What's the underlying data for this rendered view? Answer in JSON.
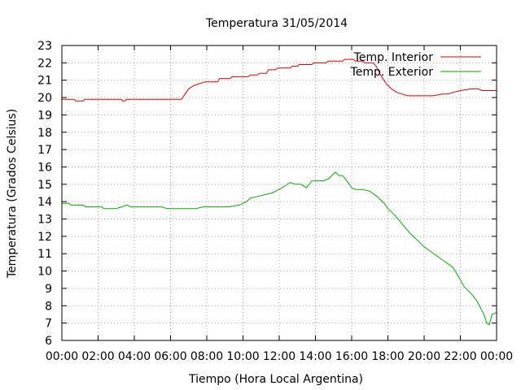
{
  "chart_data": {
    "type": "line",
    "title": "Temperatura 31/05/2014",
    "xlabel": "Tiempo (Hora Local Argentina)",
    "ylabel": "Temperatura (Grados Celsius)",
    "xlim": [
      0,
      24
    ],
    "ylim": [
      6,
      23
    ],
    "x_ticks": [
      "00:00",
      "02:00",
      "04:00",
      "06:00",
      "08:00",
      "10:00",
      "12:00",
      "14:00",
      "16:00",
      "18:00",
      "20:00",
      "22:00",
      "00:00"
    ],
    "y_ticks": [
      6,
      7,
      8,
      9,
      10,
      11,
      12,
      13,
      14,
      15,
      16,
      17,
      18,
      19,
      20,
      21,
      22,
      23
    ],
    "grid": true,
    "legend_position": "top-right",
    "series": [
      {
        "name": "Temp. Interior",
        "color": "#dd0000",
        "x": [
          0,
          0.7,
          0.75,
          1.2,
          1.25,
          3.3,
          3.35,
          3.5,
          3.55,
          6.6,
          6.8,
          7.0,
          7.3,
          7.6,
          7.9,
          8.6,
          8.7,
          9.3,
          9.4,
          10.3,
          10.4,
          10.8,
          10.9,
          11.3,
          11.4,
          11.8,
          11.9,
          12.6,
          12.7,
          13.0,
          13.1,
          13.8,
          13.9,
          14.6,
          14.7,
          15.5,
          15.6,
          16.1,
          16.2,
          16.6,
          16.7,
          17.2,
          17.35,
          17.6,
          17.9,
          18.2,
          18.5,
          18.8,
          19.1,
          19.5,
          20.0,
          20.5,
          21.0,
          21.3,
          21.6,
          22.0,
          22.6,
          23.0,
          23.2,
          23.5,
          24.0
        ],
        "y": [
          19.9,
          19.9,
          19.8,
          19.8,
          19.9,
          19.9,
          19.8,
          19.8,
          19.9,
          19.9,
          20.2,
          20.5,
          20.7,
          20.8,
          20.9,
          20.9,
          21.1,
          21.1,
          21.2,
          21.2,
          21.3,
          21.3,
          21.4,
          21.4,
          21.6,
          21.6,
          21.7,
          21.7,
          21.8,
          21.8,
          21.9,
          21.9,
          22.0,
          22.0,
          22.1,
          22.1,
          22.2,
          22.2,
          22.1,
          22.1,
          22.0,
          22.0,
          21.8,
          21.3,
          20.8,
          20.5,
          20.3,
          20.2,
          20.1,
          20.1,
          20.1,
          20.1,
          20.2,
          20.2,
          20.3,
          20.4,
          20.5,
          20.5,
          20.4,
          20.4,
          20.4
        ]
      },
      {
        "name": "Temp. Exterior",
        "color": "#00aa00",
        "x": [
          0,
          0.4,
          0.5,
          1.2,
          1.3,
          2.2,
          2.3,
          3.0,
          3.3,
          3.6,
          3.8,
          4.2,
          5.0,
          5.5,
          5.8,
          6.4,
          7.0,
          7.4,
          7.8,
          8.5,
          9.2,
          9.8,
          10.2,
          10.4,
          10.8,
          11.2,
          11.6,
          12.0,
          12.3,
          12.6,
          12.9,
          13.2,
          13.5,
          13.8,
          14.0,
          14.4,
          14.7,
          14.9,
          15.1,
          15.3,
          15.5,
          15.8,
          16.0,
          16.2,
          16.6,
          17.0,
          17.4,
          17.8,
          18.0,
          18.4,
          18.8,
          19.2,
          19.6,
          20.0,
          20.4,
          20.8,
          21.2,
          21.6,
          22.0,
          22.2,
          22.6,
          22.9,
          23.1,
          23.3,
          23.45,
          23.6,
          23.75,
          24.0
        ],
        "y": [
          13.9,
          13.9,
          13.8,
          13.8,
          13.7,
          13.7,
          13.6,
          13.6,
          13.7,
          13.8,
          13.7,
          13.7,
          13.7,
          13.7,
          13.6,
          13.6,
          13.6,
          13.6,
          13.7,
          13.7,
          13.7,
          13.8,
          14.0,
          14.2,
          14.3,
          14.4,
          14.5,
          14.7,
          14.9,
          15.1,
          15.0,
          15.0,
          14.8,
          15.2,
          15.2,
          15.2,
          15.3,
          15.5,
          15.7,
          15.5,
          15.5,
          15.1,
          14.8,
          14.7,
          14.7,
          14.6,
          14.3,
          13.9,
          13.6,
          13.2,
          12.7,
          12.2,
          11.8,
          11.4,
          11.1,
          10.8,
          10.5,
          10.2,
          9.5,
          9.1,
          8.7,
          8.3,
          7.9,
          7.5,
          7.0,
          6.9,
          7.5,
          7.6
        ]
      }
    ]
  }
}
